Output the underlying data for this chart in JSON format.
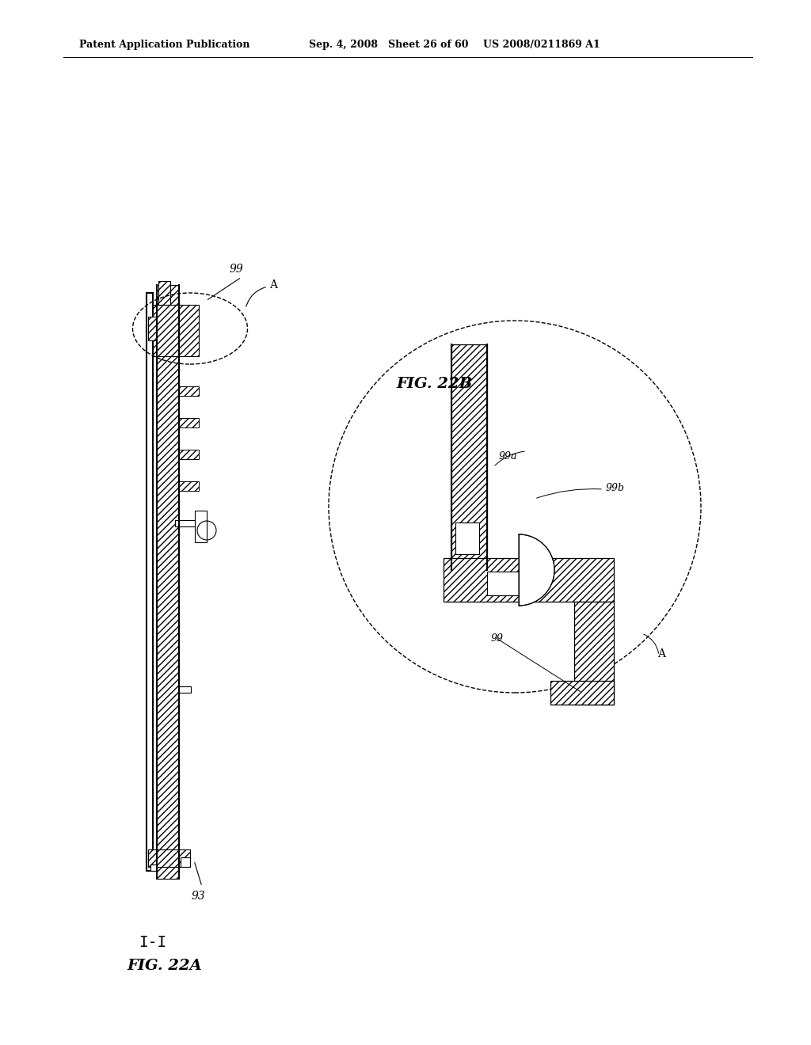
{
  "bg_color": "#ffffff",
  "line_color": "#000000",
  "hatch_color": "#000000",
  "header_text": "Patent Application Publication",
  "header_date": "Sep. 4, 2008",
  "header_sheet": "Sheet 26 of 60",
  "header_patent": "US 2008/0211869 A1",
  "fig22a_label": "FIG. 22A",
  "fig22b_label": "FIG. 22B",
  "section_label": "I-I",
  "label_99": "99",
  "label_99a": "99a",
  "label_99b": "99b",
  "label_93": "93",
  "label_A": "A"
}
